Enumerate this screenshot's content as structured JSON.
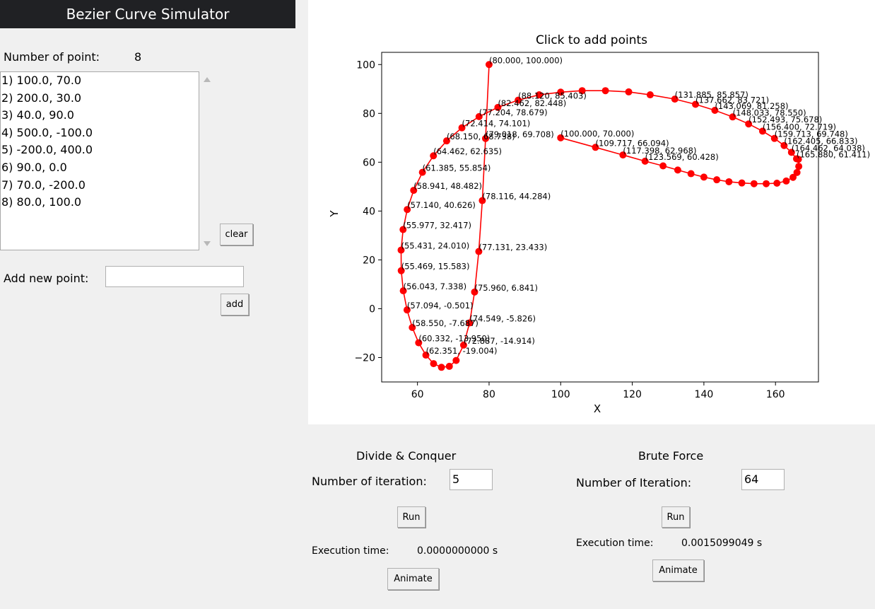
{
  "app": {
    "title": "Bezier Curve Simulator"
  },
  "points_panel": {
    "count_label": "Number of point:",
    "count_value": "8",
    "items": [
      "1) 100.0, 70.0",
      "2) 200.0, 30.0",
      "3) 40.0, 90.0",
      "4) 500.0, -100.0",
      "5) -200.0, 400.0",
      "6) 90.0, 0.0",
      "7) 70.0, -200.0",
      "8) 80.0, 100.0"
    ],
    "clear_label": "clear",
    "add_label": "Add new point:",
    "add_value": "",
    "add_button": "add"
  },
  "divide": {
    "title": "Divide & Conquer",
    "iter_label": "Number of iteration:",
    "iter_value": "5",
    "run": "Run",
    "exec_label": "Execution time:",
    "exec_value": "0.0000000000 s",
    "animate": "Animate"
  },
  "brute": {
    "title": "Brute Force",
    "iter_label": "Number of Iteration:",
    "iter_value": "64",
    "run": "Run",
    "exec_label": "Execution time:",
    "exec_value": "0.0015099049 s",
    "animate": "Animate"
  },
  "colors": {
    "curve": "#ff0000",
    "title_bg": "#202124",
    "panel_bg": "#f0f0f0"
  },
  "chart_data": {
    "type": "line",
    "title": "Click to add points",
    "xlabel": "X",
    "ylabel": "Y",
    "xlim": [
      50,
      172
    ],
    "ylim": [
      -30,
      105
    ],
    "x_ticks": [
      "60",
      "80",
      "100",
      "120",
      "140",
      "160"
    ],
    "y_ticks": [
      "−20",
      "0",
      "20",
      "40",
      "60",
      "80",
      "100"
    ],
    "grid": false,
    "series": [
      {
        "points": [
          [
            100.0,
            70.0
          ],
          [
            109.717,
            66.094
          ],
          [
            117.398,
            62.968
          ],
          [
            123.569,
            60.428
          ],
          [
            128.6,
            58.5
          ],
          [
            132.7,
            56.8
          ],
          [
            136.4,
            55.3
          ],
          [
            140.0,
            53.9
          ],
          [
            143.6,
            52.8
          ],
          [
            147.0,
            52.0
          ],
          [
            150.6,
            51.5
          ],
          [
            154.0,
            51.2
          ],
          [
            157.4,
            51.2
          ],
          [
            160.4,
            51.4
          ],
          [
            163.0,
            52.3
          ],
          [
            164.9,
            53.8
          ],
          [
            166.0,
            55.8
          ],
          [
            166.5,
            58.3
          ],
          [
            166.4,
            61.2
          ],
          [
            165.88,
            61.411
          ],
          [
            164.462,
            64.038
          ],
          [
            162.405,
            66.833
          ],
          [
            159.713,
            69.748
          ],
          [
            156.4,
            72.719
          ],
          [
            152.493,
            75.678
          ],
          [
            148.033,
            78.55
          ],
          [
            143.069,
            81.258
          ],
          [
            137.662,
            83.721
          ],
          [
            131.885,
            85.857
          ],
          [
            125.0,
            87.6
          ],
          [
            119.0,
            88.8
          ],
          [
            112.5,
            89.3
          ],
          [
            106.0,
            89.3
          ],
          [
            100.0,
            88.7
          ],
          [
            94.0,
            87.6
          ],
          [
            88.12,
            85.403
          ],
          [
            82.462,
            82.448
          ],
          [
            77.204,
            78.679
          ],
          [
            72.414,
            74.101
          ],
          [
            68.15,
            68.738
          ],
          [
            64.462,
            62.635
          ],
          [
            61.385,
            55.854
          ],
          [
            58.941,
            48.482
          ],
          [
            57.14,
            40.626
          ],
          [
            55.977,
            32.417
          ],
          [
            55.431,
            24.01
          ],
          [
            55.469,
            15.583
          ],
          [
            56.043,
            7.338
          ],
          [
            57.094,
            -0.501
          ],
          [
            58.55,
            -7.687
          ],
          [
            60.332,
            -13.95
          ],
          [
            62.351,
            -19.004
          ],
          [
            64.5,
            -22.5
          ],
          [
            66.7,
            -24.0
          ],
          [
            68.9,
            -23.6
          ],
          [
            70.8,
            -21.2
          ],
          [
            72.887,
            -14.914
          ],
          [
            74.549,
            -5.826
          ],
          [
            75.96,
            6.841
          ],
          [
            77.131,
            23.433
          ],
          [
            78.116,
            44.284
          ],
          [
            79.018,
            69.708
          ],
          [
            80.0,
            100.0
          ]
        ]
      }
    ],
    "labels": [
      {
        "x": 100.0,
        "y": 70.0,
        "text": "(100.000, 70.000)"
      },
      {
        "x": 109.717,
        "y": 66.094,
        "text": "(109.717, 66.094)"
      },
      {
        "x": 117.398,
        "y": 62.968,
        "text": "(117.398, 62.968)"
      },
      {
        "x": 123.569,
        "y": 60.428,
        "text": "(123.569, 60.428)"
      },
      {
        "x": 165.88,
        "y": 61.411,
        "text": "(165.880, 61.411)"
      },
      {
        "x": 164.462,
        "y": 64.038,
        "text": "(164.462, 64.038)"
      },
      {
        "x": 162.405,
        "y": 66.833,
        "text": "(162.405, 66.833)"
      },
      {
        "x": 159.713,
        "y": 69.748,
        "text": "(159.713, 69.748)"
      },
      {
        "x": 156.4,
        "y": 72.719,
        "text": "(156.400, 72.719)"
      },
      {
        "x": 152.493,
        "y": 75.678,
        "text": "(152.493, 75.678)"
      },
      {
        "x": 148.033,
        "y": 78.55,
        "text": "(148.033, 78.550)"
      },
      {
        "x": 143.069,
        "y": 81.258,
        "text": "(143.069, 81.258)"
      },
      {
        "x": 137.662,
        "y": 83.721,
        "text": "(137.662, 83.721)"
      },
      {
        "x": 131.885,
        "y": 85.857,
        "text": "(131.885, 85.857)"
      },
      {
        "x": 88.12,
        "y": 85.403,
        "text": "(88.120, 85.403)"
      },
      {
        "x": 82.462,
        "y": 82.448,
        "text": "(82.462, 82.448)"
      },
      {
        "x": 77.204,
        "y": 78.679,
        "text": "(77.204, 78.679)"
      },
      {
        "x": 72.414,
        "y": 74.101,
        "text": "(72.414, 74.101)"
      },
      {
        "x": 68.15,
        "y": 68.738,
        "text": "(68.150, 68.738)"
      },
      {
        "x": 79.018,
        "y": 69.708,
        "text": "(79.018, 69.708)"
      },
      {
        "x": 64.462,
        "y": 62.635,
        "text": "(64.462, 62.635)"
      },
      {
        "x": 61.385,
        "y": 55.854,
        "text": "(61.385, 55.854)"
      },
      {
        "x": 58.941,
        "y": 48.482,
        "text": "(58.941, 48.482)"
      },
      {
        "x": 78.116,
        "y": 44.284,
        "text": "(78.116, 44.284)"
      },
      {
        "x": 57.14,
        "y": 40.626,
        "text": "(57.140, 40.626)"
      },
      {
        "x": 55.977,
        "y": 32.417,
        "text": "(55.977, 32.417)"
      },
      {
        "x": 55.431,
        "y": 24.01,
        "text": "(55.431, 24.010)"
      },
      {
        "x": 77.131,
        "y": 23.433,
        "text": "(77.131, 23.433)"
      },
      {
        "x": 55.469,
        "y": 15.583,
        "text": "(55.469, 15.583)"
      },
      {
        "x": 56.043,
        "y": 7.338,
        "text": "(56.043, 7.338)"
      },
      {
        "x": 75.96,
        "y": 6.841,
        "text": "(75.960, 6.841)"
      },
      {
        "x": 57.094,
        "y": -0.501,
        "text": "(57.094, -0.501)"
      },
      {
        "x": 74.549,
        "y": -5.826,
        "text": "(74.549, -5.826)"
      },
      {
        "x": 58.55,
        "y": -7.687,
        "text": "(58.550, -7.687)"
      },
      {
        "x": 60.332,
        "y": -13.95,
        "text": "(60.332, -13.950)"
      },
      {
        "x": 72.887,
        "y": -14.914,
        "text": "(72.887, -14.914)"
      },
      {
        "x": 62.351,
        "y": -19.004,
        "text": "(62.351, -19.004)"
      },
      {
        "x": 80.0,
        "y": 100.0,
        "text": "(80.000, 100.000)"
      }
    ]
  }
}
